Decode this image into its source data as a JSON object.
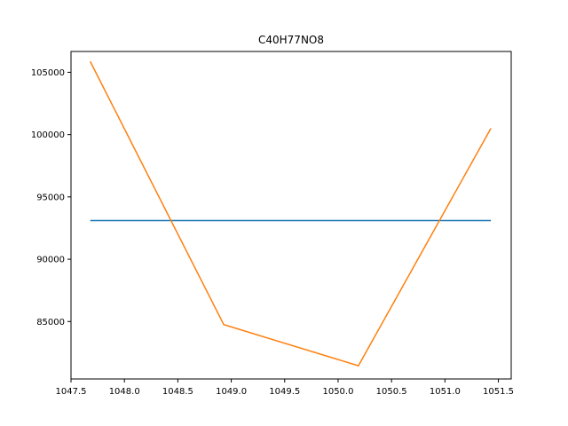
{
  "chart_data": {
    "type": "line",
    "title": "C40H77NO8",
    "xlabel": "",
    "ylabel": "",
    "xlim": [
      1047.5,
      1051.62
    ],
    "ylim": [
      80390,
      106670
    ],
    "x_ticks": [
      1047.5,
      1048.0,
      1048.5,
      1049.0,
      1049.5,
      1050.0,
      1050.5,
      1051.0,
      1051.5
    ],
    "x_tick_labels": [
      "1047.5",
      "1048.0",
      "1048.5",
      "1049.0",
      "1049.5",
      "1050.0",
      "1050.5",
      "1051.0",
      "1051.5"
    ],
    "y_ticks": [
      85000,
      90000,
      95000,
      100000,
      105000
    ],
    "y_tick_labels": [
      "85000",
      "90000",
      "95000",
      "100000",
      "105000"
    ],
    "grid": false,
    "series": [
      {
        "color": "#1f77b4",
        "x": [
          1047.68,
          1051.43
        ],
        "y": [
          93100,
          93100
        ]
      },
      {
        "color": "#ff7f0e",
        "x": [
          1047.68,
          1048.93,
          1050.19,
          1051.43
        ],
        "y": [
          105870,
          84750,
          81450,
          100500
        ]
      }
    ]
  }
}
